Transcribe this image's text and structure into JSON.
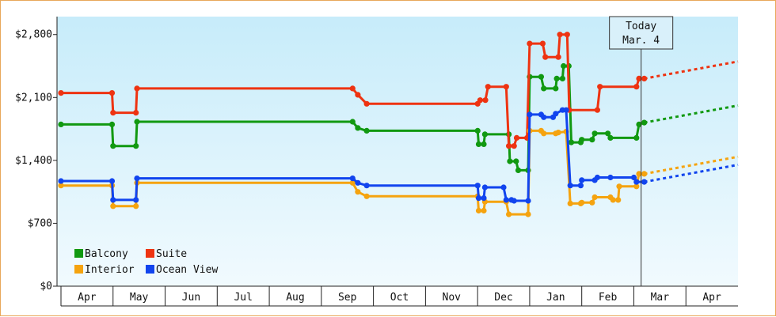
{
  "chart_data": {
    "type": "line",
    "ylim": [
      0,
      3000
    ],
    "y_ticks": [
      "$0",
      "$700",
      "$1,400",
      "$2,100",
      "$2,800"
    ],
    "y_tick_values": [
      0,
      700,
      1400,
      2100,
      2800
    ],
    "x_range": [
      0,
      13
    ],
    "months": [
      "Apr",
      "May",
      "Jun",
      "Jul",
      "Aug",
      "Sep",
      "Oct",
      "Nov",
      "Dec",
      "Jan",
      "Feb",
      "Mar",
      "Apr"
    ],
    "today": {
      "line1": "Today",
      "line2": "Mar. 4",
      "x": 11.14
    },
    "legend": {
      "position": "bottom-left"
    },
    "series": [
      {
        "name": "Balcony",
        "color": "#119911",
        "points": [
          [
            0,
            1800
          ],
          [
            0.98,
            1800
          ],
          [
            1.0,
            1560
          ],
          [
            1.44,
            1560
          ],
          [
            1.46,
            1830
          ],
          [
            5.6,
            1830
          ],
          [
            5.7,
            1760
          ],
          [
            5.87,
            1730
          ],
          [
            8.0,
            1730
          ],
          [
            8.02,
            1580
          ],
          [
            8.12,
            1580
          ],
          [
            8.14,
            1690
          ],
          [
            8.6,
            1690
          ],
          [
            8.62,
            1390
          ],
          [
            8.74,
            1390
          ],
          [
            8.78,
            1290
          ],
          [
            8.97,
            1290
          ],
          [
            9.0,
            2330
          ],
          [
            9.22,
            2330
          ],
          [
            9.27,
            2200
          ],
          [
            9.5,
            2200
          ],
          [
            9.52,
            2310
          ],
          [
            9.63,
            2310
          ],
          [
            9.65,
            2450
          ],
          [
            9.75,
            2450
          ],
          [
            9.8,
            1600
          ],
          [
            9.98,
            1600
          ],
          [
            10.0,
            1630
          ],
          [
            10.2,
            1630
          ],
          [
            10.25,
            1700
          ],
          [
            10.5,
            1700
          ],
          [
            10.55,
            1650
          ],
          [
            11.05,
            1650
          ],
          [
            11.1,
            1800
          ],
          [
            11.2,
            1820
          ]
        ],
        "projection": [
          [
            11.2,
            1820
          ],
          [
            13.0,
            2010
          ]
        ]
      },
      {
        "name": "Suite",
        "color": "#ee3311",
        "points": [
          [
            0,
            2150
          ],
          [
            0.98,
            2150
          ],
          [
            1.0,
            1930
          ],
          [
            1.44,
            1930
          ],
          [
            1.46,
            2200
          ],
          [
            5.6,
            2200
          ],
          [
            5.7,
            2130
          ],
          [
            5.87,
            2030
          ],
          [
            8.0,
            2030
          ],
          [
            8.05,
            2070
          ],
          [
            8.15,
            2070
          ],
          [
            8.2,
            2220
          ],
          [
            8.55,
            2220
          ],
          [
            8.6,
            1560
          ],
          [
            8.7,
            1560
          ],
          [
            8.75,
            1650
          ],
          [
            8.95,
            1650
          ],
          [
            9.0,
            2700
          ],
          [
            9.25,
            2700
          ],
          [
            9.3,
            2550
          ],
          [
            9.55,
            2550
          ],
          [
            9.58,
            2800
          ],
          [
            9.72,
            2800
          ],
          [
            9.76,
            1960
          ],
          [
            10.3,
            1960
          ],
          [
            10.35,
            2220
          ],
          [
            11.05,
            2220
          ],
          [
            11.1,
            2310
          ],
          [
            11.2,
            2310
          ]
        ],
        "projection": [
          [
            11.2,
            2310
          ],
          [
            13.0,
            2500
          ]
        ]
      },
      {
        "name": "Interior",
        "color": "#f5a30f",
        "points": [
          [
            0,
            1120
          ],
          [
            0.98,
            1120
          ],
          [
            1.0,
            890
          ],
          [
            1.44,
            890
          ],
          [
            1.46,
            1150
          ],
          [
            5.6,
            1150
          ],
          [
            5.7,
            1050
          ],
          [
            5.87,
            1000
          ],
          [
            8.0,
            1000
          ],
          [
            8.02,
            840
          ],
          [
            8.12,
            840
          ],
          [
            8.14,
            940
          ],
          [
            8.55,
            940
          ],
          [
            8.6,
            800
          ],
          [
            8.97,
            800
          ],
          [
            9.0,
            1730
          ],
          [
            9.22,
            1730
          ],
          [
            9.27,
            1700
          ],
          [
            9.5,
            1700
          ],
          [
            9.55,
            1710
          ],
          [
            9.7,
            1720
          ],
          [
            9.78,
            920
          ],
          [
            9.98,
            920
          ],
          [
            10.0,
            930
          ],
          [
            10.2,
            930
          ],
          [
            10.25,
            990
          ],
          [
            10.55,
            990
          ],
          [
            10.6,
            960
          ],
          [
            10.7,
            960
          ],
          [
            10.72,
            1110
          ],
          [
            11.05,
            1110
          ],
          [
            11.1,
            1250
          ],
          [
            11.2,
            1250
          ]
        ],
        "projection": [
          [
            11.2,
            1250
          ],
          [
            13.0,
            1440
          ]
        ]
      },
      {
        "name": "Ocean View",
        "color": "#1144ee",
        "points": [
          [
            0,
            1170
          ],
          [
            0.98,
            1170
          ],
          [
            1.0,
            960
          ],
          [
            1.44,
            960
          ],
          [
            1.46,
            1200
          ],
          [
            5.6,
            1200
          ],
          [
            5.7,
            1150
          ],
          [
            5.87,
            1120
          ],
          [
            8.0,
            1120
          ],
          [
            8.02,
            980
          ],
          [
            8.12,
            980
          ],
          [
            8.14,
            1100
          ],
          [
            8.5,
            1100
          ],
          [
            8.55,
            960
          ],
          [
            8.65,
            960
          ],
          [
            8.7,
            950
          ],
          [
            8.97,
            950
          ],
          [
            9.0,
            1910
          ],
          [
            9.22,
            1910
          ],
          [
            9.27,
            1880
          ],
          [
            9.45,
            1880
          ],
          [
            9.5,
            1920
          ],
          [
            9.63,
            1960
          ],
          [
            9.7,
            1960
          ],
          [
            9.78,
            1120
          ],
          [
            9.98,
            1120
          ],
          [
            10.0,
            1180
          ],
          [
            10.25,
            1180
          ],
          [
            10.3,
            1210
          ],
          [
            10.55,
            1210
          ],
          [
            11.0,
            1210
          ],
          [
            11.05,
            1160
          ],
          [
            11.2,
            1160
          ]
        ],
        "projection": [
          [
            11.2,
            1160
          ],
          [
            13.0,
            1350
          ]
        ]
      }
    ]
  }
}
